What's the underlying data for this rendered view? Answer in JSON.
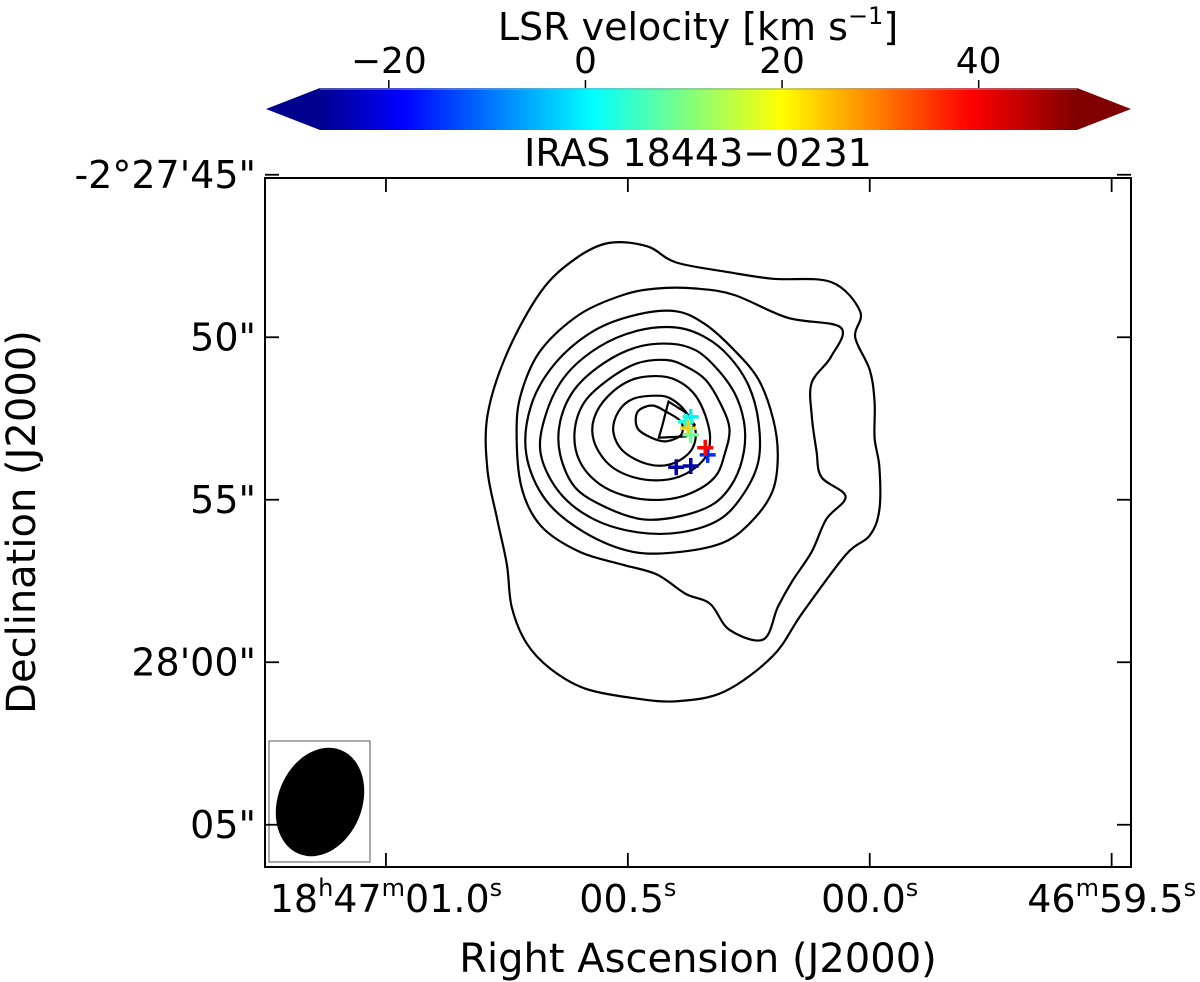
{
  "chart_data": {
    "type": "contour",
    "title": "IRAS 18443−0231",
    "xlabel": "Right Ascension (J2000)",
    "ylabel": "Declination (J2000)",
    "x_ticks": [
      {
        "ra_s": 1.0,
        "main": "18",
        "h": "h",
        "m_main": "47",
        "m": "m",
        "s_main": "01.0",
        "s": "s"
      },
      {
        "ra_s": 0.5,
        "main": "",
        "h": "",
        "m_main": "",
        "m": "",
        "s_main": "00.5",
        "s": "s"
      },
      {
        "ra_s": 0.0,
        "main": "",
        "h": "",
        "m_main": "",
        "m": "",
        "s_main": "00.0",
        "s": "s"
      },
      {
        "ra_s": -0.5,
        "main": "",
        "h": "",
        "m_main": "46",
        "m": "m",
        "s_main": "59.5",
        "s": "s"
      }
    ],
    "y_ticks": [
      {
        "dec_arcsec": 45,
        "label": "-2°27'45\""
      },
      {
        "dec_arcsec": 50,
        "label": "50\""
      },
      {
        "dec_arcsec": 55,
        "label": "55\""
      },
      {
        "dec_arcsec": 60,
        "label": "28'00\""
      },
      {
        "dec_arcsec": 65,
        "label": "05\""
      }
    ],
    "x_range_s": [
      1.25,
      -0.54
    ],
    "y_range_arcsec": [
      45.1,
      66.3
    ],
    "colorbar": {
      "label_main": "LSR velocity [km s",
      "label_sup": "−1",
      "label_close": "]",
      "min": -27,
      "max": 50,
      "ticks": [
        {
          "value": -20,
          "label": "−20"
        },
        {
          "value": 0,
          "label": "0"
        },
        {
          "value": 20,
          "label": "20"
        },
        {
          "value": 40,
          "label": "40"
        }
      ],
      "colormap": "jet",
      "extend": "both"
    },
    "contours": [
      {
        "level": 1,
        "points": [
          [
            0.54,
            47.1
          ],
          [
            0.46,
            47.2
          ],
          [
            0.4,
            47.7
          ],
          [
            0.29,
            48.0
          ],
          [
            0.2,
            48.2
          ],
          [
            0.08,
            48.3
          ],
          [
            0.02,
            49.2
          ],
          [
            0.03,
            50.0
          ],
          [
            0.0,
            51.0
          ],
          [
            -0.01,
            52.0
          ],
          [
            -0.01,
            53.1
          ],
          [
            -0.02,
            54.0
          ],
          [
            -0.02,
            55.3
          ],
          [
            0.0,
            56.1
          ],
          [
            0.05,
            56.7
          ],
          [
            0.14,
            58.5
          ],
          [
            0.2,
            59.8
          ],
          [
            0.3,
            60.9
          ],
          [
            0.4,
            61.2
          ],
          [
            0.49,
            61.1
          ],
          [
            0.59,
            60.8
          ],
          [
            0.66,
            60.2
          ],
          [
            0.71,
            59.4
          ],
          [
            0.74,
            58.3
          ],
          [
            0.75,
            57.0
          ],
          [
            0.77,
            55.6
          ],
          [
            0.79,
            54.1
          ],
          [
            0.79,
            52.4
          ],
          [
            0.75,
            50.5
          ],
          [
            0.68,
            48.6
          ],
          [
            0.61,
            47.6
          ],
          [
            0.54,
            47.1
          ]
        ]
      },
      {
        "level": 2,
        "points": [
          [
            0.44,
            48.5
          ],
          [
            0.36,
            48.5
          ],
          [
            0.28,
            48.7
          ],
          [
            0.17,
            49.4
          ],
          [
            0.06,
            49.7
          ],
          [
            0.08,
            50.6
          ],
          [
            0.12,
            51.4
          ],
          [
            0.12,
            52.4
          ],
          [
            0.11,
            53.5
          ],
          [
            0.1,
            54.3
          ],
          [
            0.05,
            54.9
          ],
          [
            0.09,
            55.6
          ],
          [
            0.12,
            56.6
          ],
          [
            0.16,
            57.5
          ],
          [
            0.19,
            58.3
          ],
          [
            0.22,
            59.3
          ],
          [
            0.29,
            59.0
          ],
          [
            0.33,
            58.2
          ],
          [
            0.38,
            57.9
          ],
          [
            0.44,
            57.3
          ],
          [
            0.51,
            57.0
          ],
          [
            0.6,
            56.6
          ],
          [
            0.68,
            55.8
          ],
          [
            0.72,
            54.6
          ],
          [
            0.73,
            52.9
          ],
          [
            0.72,
            51.7
          ],
          [
            0.68,
            50.4
          ],
          [
            0.6,
            49.3
          ],
          [
            0.51,
            48.7
          ],
          [
            0.44,
            48.5
          ]
        ]
      },
      {
        "level": 3,
        "points": [
          [
            0.4,
            49.2
          ],
          [
            0.48,
            49.3
          ],
          [
            0.57,
            49.8
          ],
          [
            0.65,
            50.8
          ],
          [
            0.7,
            52.1
          ],
          [
            0.71,
            53.6
          ],
          [
            0.67,
            55.0
          ],
          [
            0.59,
            56.0
          ],
          [
            0.49,
            56.6
          ],
          [
            0.39,
            56.6
          ],
          [
            0.3,
            56.3
          ],
          [
            0.24,
            55.6
          ],
          [
            0.2,
            54.7
          ],
          [
            0.19,
            53.6
          ],
          [
            0.2,
            52.5
          ],
          [
            0.23,
            51.3
          ],
          [
            0.28,
            50.4
          ],
          [
            0.34,
            49.6
          ],
          [
            0.4,
            49.2
          ]
        ]
      },
      {
        "level": 4,
        "points": [
          [
            0.4,
            49.7
          ],
          [
            0.48,
            49.8
          ],
          [
            0.56,
            50.3
          ],
          [
            0.63,
            51.2
          ],
          [
            0.67,
            52.4
          ],
          [
            0.68,
            53.6
          ],
          [
            0.64,
            54.8
          ],
          [
            0.57,
            55.6
          ],
          [
            0.48,
            56.0
          ],
          [
            0.39,
            56.0
          ],
          [
            0.31,
            55.6
          ],
          [
            0.26,
            54.8
          ],
          [
            0.23,
            53.8
          ],
          [
            0.23,
            52.6
          ],
          [
            0.25,
            51.5
          ],
          [
            0.29,
            50.6
          ],
          [
            0.34,
            50.0
          ],
          [
            0.4,
            49.7
          ]
        ]
      },
      {
        "level": 5,
        "points": [
          [
            0.41,
            50.2
          ],
          [
            0.48,
            50.3
          ],
          [
            0.55,
            50.8
          ],
          [
            0.61,
            51.6
          ],
          [
            0.64,
            52.6
          ],
          [
            0.64,
            53.6
          ],
          [
            0.61,
            54.6
          ],
          [
            0.55,
            55.2
          ],
          [
            0.47,
            55.6
          ],
          [
            0.39,
            55.5
          ],
          [
            0.32,
            55.1
          ],
          [
            0.28,
            54.4
          ],
          [
            0.26,
            53.5
          ],
          [
            0.26,
            52.6
          ],
          [
            0.28,
            51.7
          ],
          [
            0.32,
            50.9
          ],
          [
            0.36,
            50.4
          ],
          [
            0.41,
            50.2
          ]
        ]
      },
      {
        "level": 6,
        "points": [
          [
            0.42,
            50.7
          ],
          [
            0.48,
            50.8
          ],
          [
            0.54,
            51.3
          ],
          [
            0.59,
            52.0
          ],
          [
            0.61,
            52.9
          ],
          [
            0.6,
            53.8
          ],
          [
            0.56,
            54.5
          ],
          [
            0.5,
            54.9
          ],
          [
            0.43,
            55.0
          ],
          [
            0.37,
            54.8
          ],
          [
            0.32,
            54.3
          ],
          [
            0.3,
            53.6
          ],
          [
            0.29,
            52.8
          ],
          [
            0.31,
            52.0
          ],
          [
            0.34,
            51.3
          ],
          [
            0.38,
            50.9
          ],
          [
            0.42,
            50.7
          ]
        ]
      },
      {
        "level": 7,
        "points": [
          [
            0.43,
            51.2
          ],
          [
            0.49,
            51.3
          ],
          [
            0.54,
            51.8
          ],
          [
            0.57,
            52.5
          ],
          [
            0.57,
            53.2
          ],
          [
            0.54,
            53.9
          ],
          [
            0.49,
            54.3
          ],
          [
            0.43,
            54.4
          ],
          [
            0.38,
            54.2
          ],
          [
            0.34,
            53.7
          ],
          [
            0.33,
            53.1
          ],
          [
            0.34,
            52.4
          ],
          [
            0.36,
            51.8
          ],
          [
            0.39,
            51.4
          ],
          [
            0.43,
            51.2
          ]
        ]
      },
      {
        "level": 8,
        "points": [
          [
            0.44,
            51.8
          ],
          [
            0.49,
            51.9
          ],
          [
            0.52,
            52.3
          ],
          [
            0.53,
            52.9
          ],
          [
            0.51,
            53.5
          ],
          [
            0.46,
            53.9
          ],
          [
            0.41,
            53.9
          ],
          [
            0.37,
            53.5
          ],
          [
            0.36,
            52.9
          ],
          [
            0.38,
            52.3
          ],
          [
            0.41,
            51.9
          ],
          [
            0.44,
            51.8
          ]
        ]
      },
      {
        "level": 9,
        "points": [
          [
            0.45,
            52.1
          ],
          [
            0.48,
            52.3
          ],
          [
            0.48,
            52.8
          ],
          [
            0.45,
            53.1
          ],
          [
            0.42,
            53.2
          ],
          [
            0.39,
            53.0
          ],
          [
            0.39,
            52.6
          ],
          [
            0.42,
            52.3
          ],
          [
            0.45,
            52.1
          ]
        ]
      },
      {
        "level": 10,
        "points": [
          [
            0.416,
            51.98
          ],
          [
            0.382,
            52.3
          ],
          [
            0.362,
            52.69
          ],
          [
            0.38,
            53.05
          ],
          [
            0.436,
            53.09
          ],
          [
            0.429,
            52.73
          ],
          [
            0.416,
            51.98
          ]
        ]
      }
    ],
    "masers": [
      {
        "ra_s": 0.4,
        "dec_arcsec": 54.0,
        "velocity": -24
      },
      {
        "ra_s": 0.37,
        "dec_arcsec": 53.96,
        "velocity": -24
      },
      {
        "ra_s": 0.335,
        "dec_arcsec": 53.62,
        "velocity": -14
      },
      {
        "ra_s": 0.34,
        "dec_arcsec": 53.4,
        "velocity": 40
      },
      {
        "ra_s": 0.37,
        "dec_arcsec": 52.45,
        "velocity": 1
      },
      {
        "ra_s": 0.38,
        "dec_arcsec": 52.6,
        "velocity": 4
      },
      {
        "ra_s": 0.375,
        "dec_arcsec": 52.8,
        "velocity": 25
      },
      {
        "ra_s": 0.37,
        "dec_arcsec": 53.0,
        "velocity": 10
      }
    ],
    "beam": {
      "major_arcsec": 3.4,
      "minor_arcsec": 2.6,
      "pa_deg": 22
    },
    "grid": false
  },
  "colors": {
    "contour": "#000000",
    "frame": "#000000",
    "beam": "#000000"
  }
}
